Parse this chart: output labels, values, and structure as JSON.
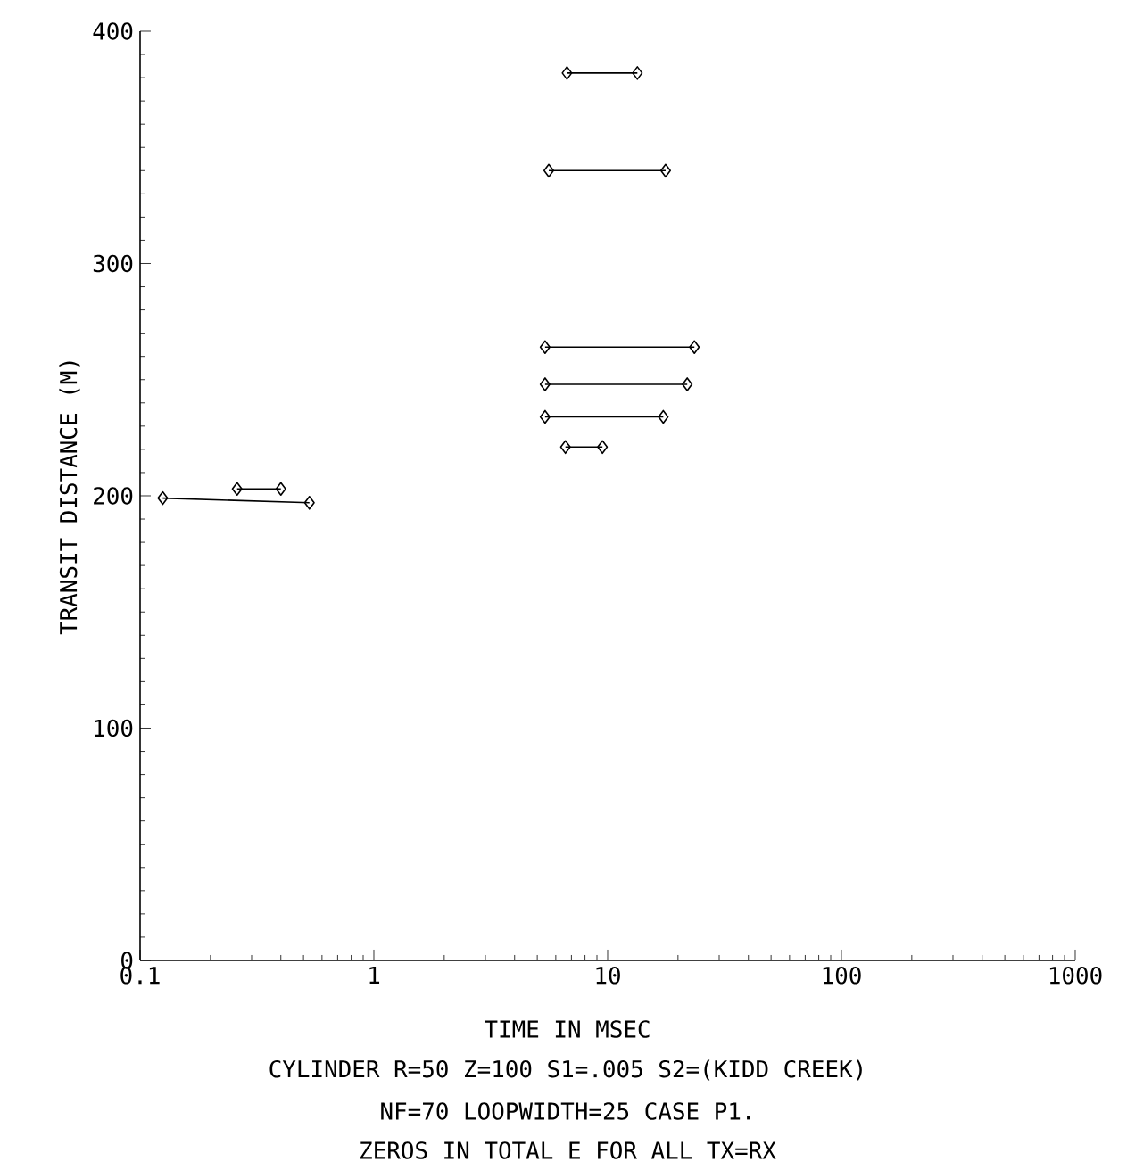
{
  "chart_data": {
    "type": "line",
    "xlabel": "TIME IN MSEC",
    "ylabel": "TRANSIT DISTANCE (M)",
    "annotations": [
      "CYLINDER R=50 Z=100 S1=.005 S2=(KIDD CREEK)",
      "NF=70 LOOPWIDTH=25 CASE P1.",
      "ZEROS IN TOTAL E FOR ALL TX=RX"
    ],
    "log": "x",
    "xlim": [
      0.1,
      1000
    ],
    "xticks": [
      {
        "value": 0.1,
        "label": "0.1"
      },
      1,
      10,
      100,
      1000
    ],
    "ylim": [
      0,
      400
    ],
    "yticks": [
      0,
      100,
      200,
      300,
      400
    ],
    "marker": "diamond",
    "line_style": "solid",
    "grid": false,
    "series": [
      {
        "color": "#000000",
        "x": [
          6.7,
          13.4
        ],
        "values": [
          382,
          382
        ]
      },
      {
        "color": "#000000",
        "x": [
          5.6,
          17.7
        ],
        "values": [
          340,
          340
        ]
      },
      {
        "color": "#000000",
        "x": [
          5.4,
          23.5
        ],
        "values": [
          264,
          264
        ]
      },
      {
        "color": "#000000",
        "x": [
          5.4,
          21.9
        ],
        "values": [
          248,
          248
        ]
      },
      {
        "color": "#000000",
        "x": [
          5.4,
          17.3
        ],
        "values": [
          234,
          234
        ]
      },
      {
        "color": "#000000",
        "x": [
          6.6,
          9.5
        ],
        "values": [
          221,
          221
        ]
      },
      {
        "color": "#000000",
        "x": [
          0.125,
          0.53
        ],
        "values": [
          199,
          197
        ]
      },
      {
        "color": "#000000",
        "x": [
          0.26,
          0.4
        ],
        "values": [
          203,
          203
        ]
      }
    ]
  }
}
